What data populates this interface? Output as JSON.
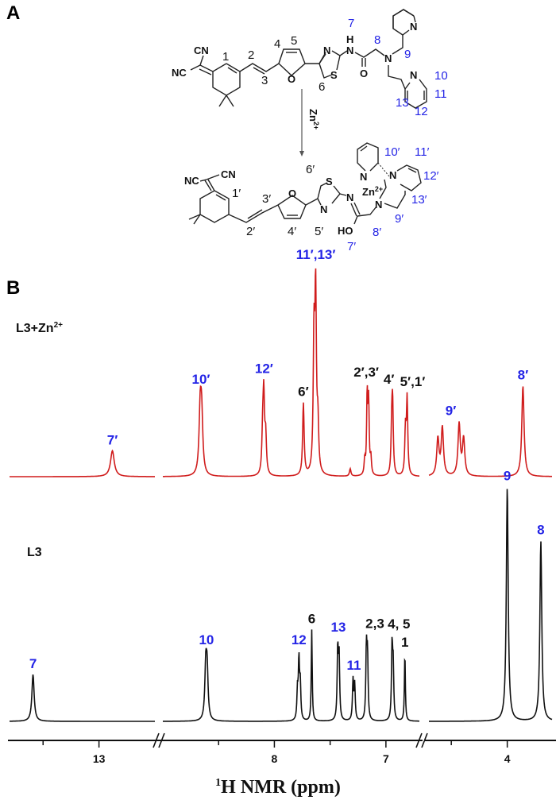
{
  "panels": {
    "a": "A",
    "b": "B"
  },
  "structure": {
    "reagent": "Zn",
    "reagent_charge": "2+",
    "ligand_atoms": {
      "nc": "NC",
      "cn": "CN",
      "o_furan": "O",
      "n_thiazole": "N",
      "s_thiazole": "S",
      "nh_h": "H",
      "nh_n": "N",
      "o_carbonyl": "O",
      "n_amine": "N",
      "n_pyr1": "N",
      "n_pyr2": "N"
    },
    "ligand_labels": {
      "l1": "1",
      "l2": "2",
      "l3": "3",
      "l4": "4",
      "l5": "5",
      "l6": "6",
      "l7": "7",
      "l8": "8",
      "l9": "9",
      "l10": "10",
      "l11": "11",
      "l12": "12",
      "l13": "13"
    },
    "complex_atoms": {
      "nc": "NC",
      "cn": "CN",
      "o_furan": "O",
      "s_thiazole": "S",
      "n_thiazole": "N",
      "n_imine": "N",
      "ho": "HO",
      "n_amine": "N",
      "n_pyr1": "N",
      "n_pyr2": "N",
      "zn": "Zn",
      "zn_charge": "2+"
    },
    "complex_labels": {
      "l1": "1′",
      "l2": "2′",
      "l3": "3′",
      "l4": "4′",
      "l5": "5′",
      "l6": "6′",
      "l7": "7′",
      "l8": "8′",
      "l9": "9′",
      "l10": "10′",
      "l11": "11′",
      "l12": "12′",
      "l13": "13′"
    }
  },
  "chart_data": {
    "type": "line",
    "title": "",
    "xlabel_sup": "1",
    "xlabel": "H NMR (ppm)",
    "ylabel": "",
    "x_reversed": true,
    "x_segments": [
      [
        13.8,
        12.5
      ],
      [
        9.0,
        6.7
      ],
      [
        4.7,
        3.6
      ]
    ],
    "axis_breaks": 2,
    "major_ticks": [
      13,
      8,
      7,
      4
    ],
    "tick_labels": [
      "13",
      "8",
      "7",
      "4"
    ],
    "minor_ticks": [
      13.5,
      8.5,
      7.5,
      4.5
    ],
    "grid": false,
    "colors": {
      "label_blue": "#2424e6",
      "label_black": "#111111"
    },
    "series": [
      {
        "name": "L3+Zn",
        "name_sup": "2+",
        "color": "#d01c1c",
        "peaks": [
          {
            "label": "7′",
            "label_color": "blue",
            "width": 0.02,
            "lines": [
              [
                12.88,
                14
              ]
            ]
          },
          {
            "label": "10′",
            "label_color": "blue",
            "width": 0.012,
            "lines": [
              [
                8.665,
                33
              ],
              [
                8.652,
                30
              ]
            ]
          },
          {
            "label": "12′",
            "label_color": "blue",
            "width": 0.008,
            "lines": [
              [
                8.095,
                41
              ],
              [
                8.105,
                20
              ],
              [
                8.078,
                20
              ]
            ]
          },
          {
            "label": "6′",
            "label_color": "black",
            "width": 0.008,
            "lines": [
              [
                7.74,
                39
              ]
            ]
          },
          {
            "label": "11′,13′",
            "label_color": "blue",
            "width": 0.008,
            "lines": [
              [
                7.63,
                95
              ],
              [
                7.645,
                70
              ],
              [
                7.61,
                25
              ]
            ]
          },
          {
            "label": "",
            "label_color": "black",
            "width": 0.008,
            "lines": [
              [
                7.32,
                4
              ]
            ]
          },
          {
            "label": "2′,3′",
            "label_color": "black",
            "width": 0.006,
            "lines": [
              [
                7.19,
                8
              ],
              [
                7.168,
                43
              ],
              [
                7.155,
                38
              ],
              [
                7.135,
                9
              ]
            ]
          },
          {
            "label": "4′",
            "label_color": "black",
            "width": 0.007,
            "lines": [
              [
                6.94,
                36
              ],
              [
                6.948,
                24
              ]
            ]
          },
          {
            "label": "5′,1′",
            "label_color": "black",
            "width": 0.007,
            "lines": [
              [
                6.81,
                41
              ],
              [
                6.825,
                24
              ]
            ]
          },
          {
            "label": "9′",
            "label_color": "blue",
            "width": 0.012,
            "lines": [
              [
                4.62,
                20
              ],
              [
                4.58,
                26
              ],
              [
                4.43,
                28
              ],
              [
                4.39,
                20
              ]
            ]
          },
          {
            "label": "8′",
            "label_color": "blue",
            "width": 0.012,
            "lines": [
              [
                3.86,
                49
              ]
            ]
          }
        ]
      },
      {
        "name": "L3",
        "color": "#111111",
        "peaks": [
          {
            "label": "7",
            "label_color": "blue",
            "width": 0.012,
            "lines": [
              [
                13.59,
                20
              ]
            ]
          },
          {
            "label": "10",
            "label_color": "blue",
            "width": 0.01,
            "lines": [
              [
                8.615,
                22
              ],
              [
                8.603,
                20
              ]
            ]
          },
          {
            "label": "12",
            "label_color": "blue",
            "width": 0.006,
            "lines": [
              [
                7.78,
                25
              ],
              [
                7.768,
                15
              ],
              [
                7.793,
                12
              ]
            ]
          },
          {
            "label": "6",
            "label_color": "black",
            "width": 0.005,
            "lines": [
              [
                7.665,
                39
              ]
            ]
          },
          {
            "label": "13",
            "label_color": "blue",
            "width": 0.006,
            "lines": [
              [
                7.432,
                30
              ],
              [
                7.42,
                27
              ]
            ]
          },
          {
            "label": "11",
            "label_color": "blue",
            "width": 0.006,
            "lines": [
              [
                7.295,
                17
              ],
              [
                7.28,
                15
              ]
            ]
          },
          {
            "label": "2,3",
            "label_color": "black",
            "width": 0.006,
            "lines": [
              [
                7.175,
                30
              ],
              [
                7.165,
                26
              ]
            ]
          },
          {
            "label": "4, 5",
            "label_color": "black",
            "width": 0.006,
            "lines": [
              [
                6.945,
                31
              ],
              [
                6.935,
                22
              ]
            ]
          },
          {
            "label": "1",
            "label_color": "black",
            "width": 0.005,
            "lines": [
              [
                6.83,
                29
              ]
            ]
          },
          {
            "label": "9",
            "label_color": "blue",
            "width": 0.01,
            "lines": [
              [
                4.0,
                100
              ]
            ]
          },
          {
            "label": "8",
            "label_color": "blue",
            "width": 0.01,
            "lines": [
              [
                3.7,
                77
              ]
            ]
          }
        ]
      }
    ]
  }
}
